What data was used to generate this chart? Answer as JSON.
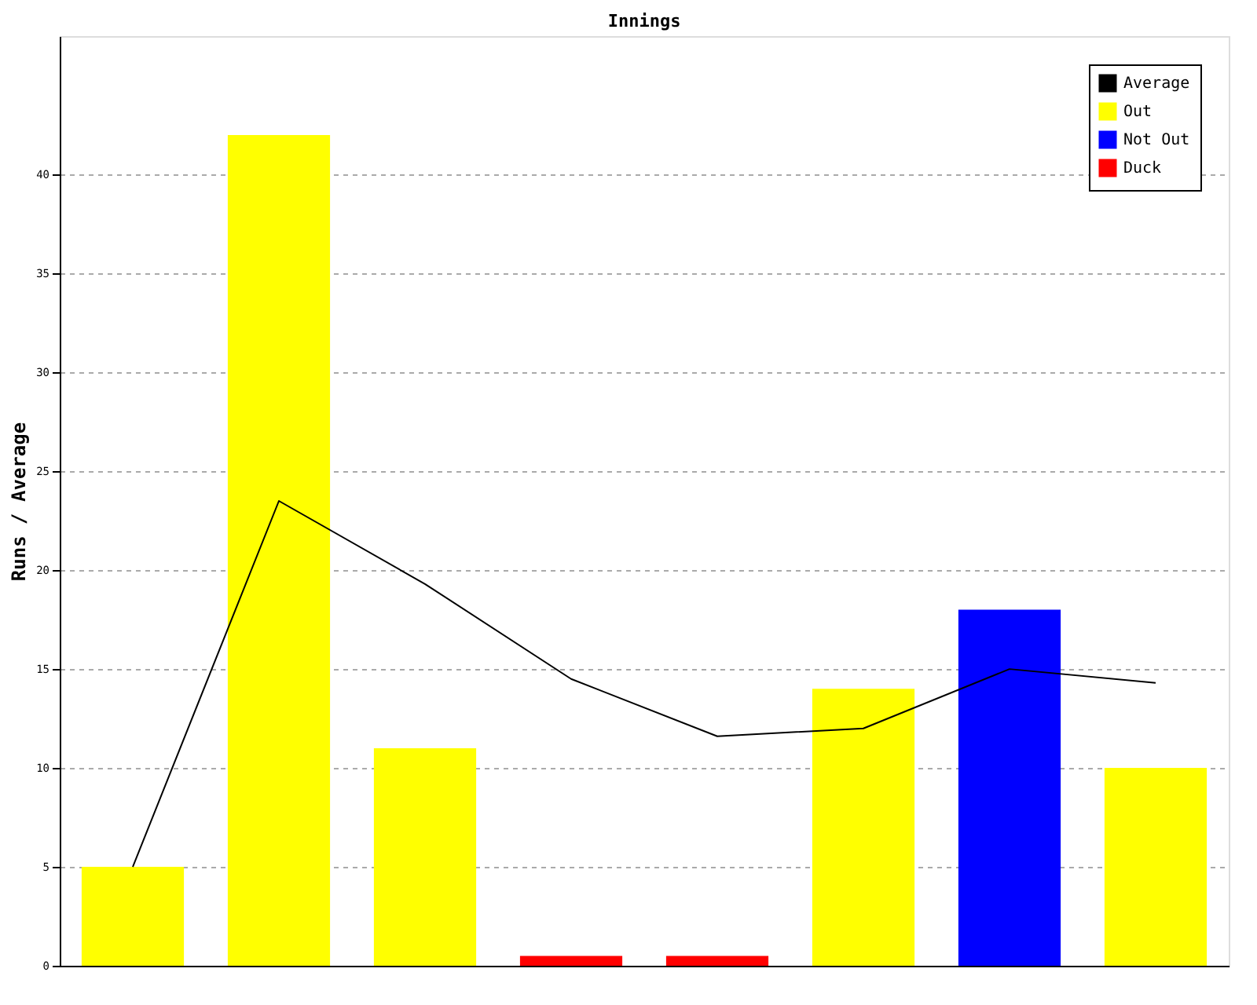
{
  "chart_data": {
    "type": "bar",
    "title": "Innings",
    "ylabel": "Runs / Average",
    "categories": [
      null,
      null,
      null,
      null,
      null,
      null,
      null,
      null
    ],
    "series": [
      {
        "name": "Average",
        "type": "line",
        "color": "#000000",
        "values": [
          5,
          23.5,
          19.3,
          14.5,
          11.6,
          12,
          15,
          14.3
        ]
      },
      {
        "name": "Out",
        "color": "#ffff00",
        "values": [
          5,
          42,
          11,
          null,
          null,
          14,
          null,
          10
        ]
      },
      {
        "name": "Not Out",
        "color": "#0000ff",
        "values": [
          null,
          null,
          null,
          null,
          null,
          null,
          18,
          null
        ]
      },
      {
        "name": "Duck",
        "color": "#ff0000",
        "values": [
          null,
          null,
          null,
          0.5,
          0.5,
          null,
          null,
          null
        ]
      }
    ],
    "ylim": [
      0,
      47
    ],
    "yticks": [
      0,
      5,
      10,
      15,
      20,
      25,
      30,
      35,
      40
    ],
    "grid": "y",
    "legend": "top right",
    "tick_labels": "y"
  }
}
